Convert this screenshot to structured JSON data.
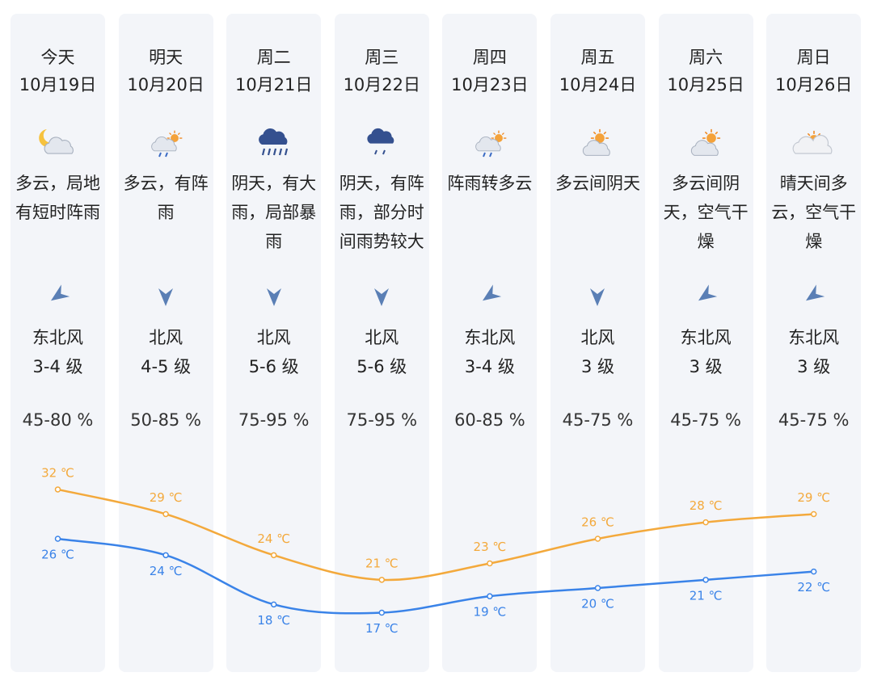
{
  "days": [
    {
      "day": "今天",
      "date": "10月19日",
      "weather": "多云，局地有短时阵雨",
      "wind": "东北风",
      "level": "3-4 级",
      "humidity": "45-80 %"
    },
    {
      "day": "明天",
      "date": "10月20日",
      "weather": "多云，有阵雨",
      "wind": "北风",
      "level": "4-5 级",
      "humidity": "50-85 %"
    },
    {
      "day": "周二",
      "date": "10月21日",
      "weather": "阴天，有大雨，局部暴雨",
      "wind": "北风",
      "level": "5-6 级",
      "humidity": "75-95 %"
    },
    {
      "day": "周三",
      "date": "10月22日",
      "weather": "阴天，有阵雨，部分时间雨势较大",
      "wind": "北风",
      "level": "5-6 级",
      "humidity": "75-95 %"
    },
    {
      "day": "周四",
      "date": "10月23日",
      "weather": "阵雨转多云",
      "wind": "东北风",
      "level": "3-4 级",
      "humidity": "60-85 %"
    },
    {
      "day": "周五",
      "date": "10月24日",
      "weather": "多云间阴天",
      "wind": "北风",
      "level": "3 级",
      "humidity": "45-75 %"
    },
    {
      "day": "周六",
      "date": "10月25日",
      "weather": "多云间阴天，空气干燥",
      "wind": "东北风",
      "level": "3 级",
      "humidity": "45-75 %"
    },
    {
      "day": "周日",
      "date": "10月26日",
      "weather": "晴天间多云，空气干燥",
      "wind": "东北风",
      "level": "3 级",
      "humidity": "45-75 %"
    }
  ],
  "temperature": {
    "high": {
      "color": "#f3a93c",
      "values": [
        32,
        29,
        24,
        21,
        23,
        26,
        28,
        29
      ],
      "value_labels": [
        "32 ℃",
        "29 ℃",
        "24 ℃",
        "21 ℃",
        "23 ℃",
        "26 ℃",
        "28 ℃",
        "29 ℃"
      ]
    },
    "low": {
      "color": "#3a83e8",
      "values": [
        26,
        24,
        18,
        17,
        19,
        20,
        21,
        22
      ],
      "value_labels": [
        "26 ℃",
        "24 ℃",
        "18 ℃",
        "17 ℃",
        "19 ℃",
        "20 ℃",
        "21 ℃",
        "22 ℃"
      ]
    }
  }
}
